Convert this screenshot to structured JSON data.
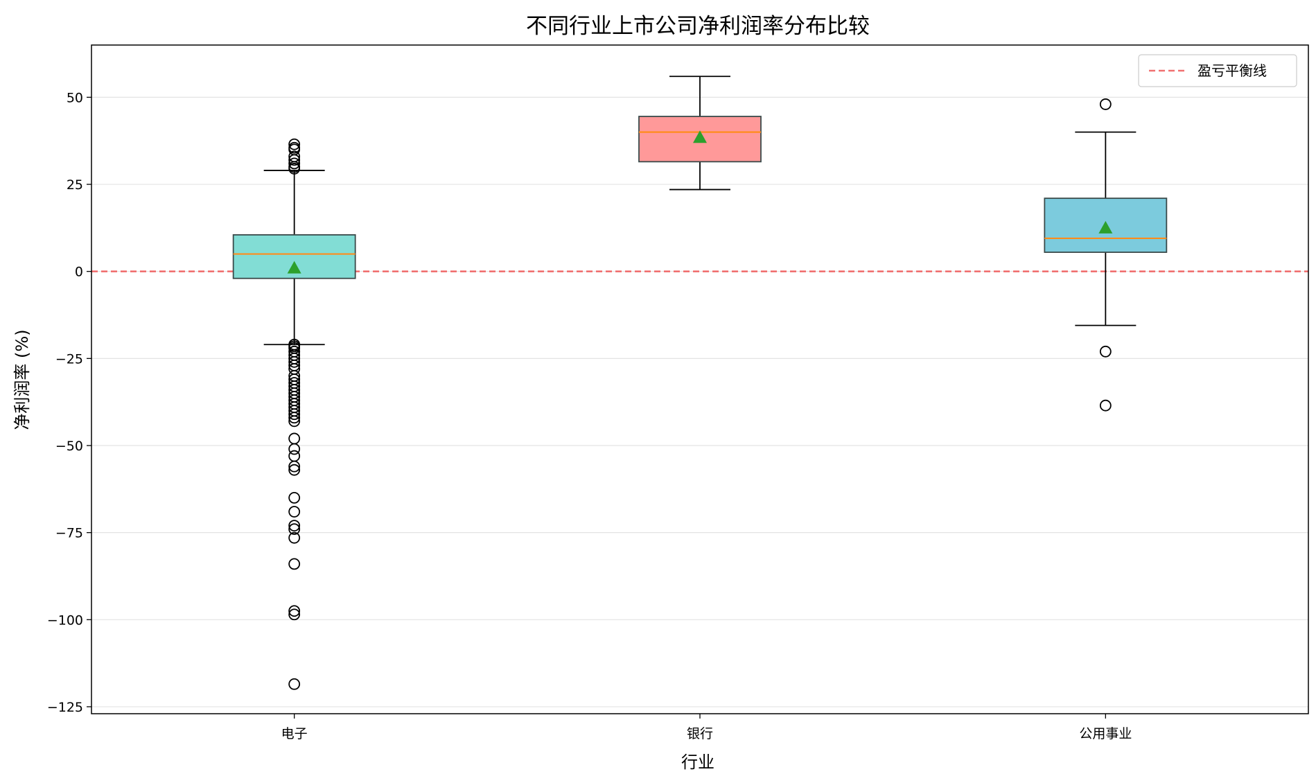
{
  "chart_data": {
    "type": "box",
    "title": "不同行业上市公司净利润率分布比较",
    "xlabel": "行业",
    "ylabel": "净利润率 (%)",
    "ylim": [
      -127,
      65
    ],
    "yticks": [
      50,
      25,
      0,
      -25,
      -50,
      -75,
      -100,
      -125
    ],
    "ytick_labels": [
      "50",
      "25",
      "0",
      "−25",
      "−50",
      "−75",
      "−100",
      "−125"
    ],
    "grid": "y",
    "legend_position": "top-right",
    "reference_line": {
      "label": "盈亏平衡线",
      "y": 0,
      "color": "#f07070",
      "style": "dashed"
    },
    "categories": [
      "电子",
      "银行",
      "公用事业"
    ],
    "boxes": [
      {
        "category": "电子",
        "color": "#82ddd5",
        "whisker_low": -21,
        "q1": -2,
        "median": 5,
        "q3": 10.5,
        "whisker_high": 29,
        "mean": 1,
        "outliers": [
          36.5,
          35.5,
          35,
          33,
          32,
          31,
          30,
          29.5,
          -21,
          -21.5,
          -22,
          -23,
          -24,
          -25,
          -26,
          -27,
          -28,
          -30,
          -31,
          -32,
          -33,
          -34,
          -35,
          -36,
          -37,
          -38,
          -39,
          -40,
          -41,
          -42,
          -43,
          -48,
          -51,
          -53,
          -56,
          -57,
          -65,
          -69,
          -73,
          -74,
          -76.5,
          -84,
          -97.5,
          -98.5,
          -118.5
        ]
      },
      {
        "category": "银行",
        "color": "#ff9999",
        "whisker_low": 23.5,
        "q1": 31.5,
        "median": 40,
        "q3": 44.5,
        "whisker_high": 56,
        "mean": 38.5,
        "outliers": []
      },
      {
        "category": "公用事业",
        "color": "#7ccbdd",
        "whisker_low": -15.5,
        "q1": 5.5,
        "median": 9.5,
        "q3": 21,
        "whisker_high": 40,
        "mean": 12.5,
        "outliers": [
          48,
          -23,
          -38.5
        ]
      }
    ],
    "styles": {
      "median_color": "#ff8c1a",
      "mean_color": "#2ca02c",
      "box_edge": "#3a4a4a",
      "grid_color": "#e3e3e3"
    }
  }
}
